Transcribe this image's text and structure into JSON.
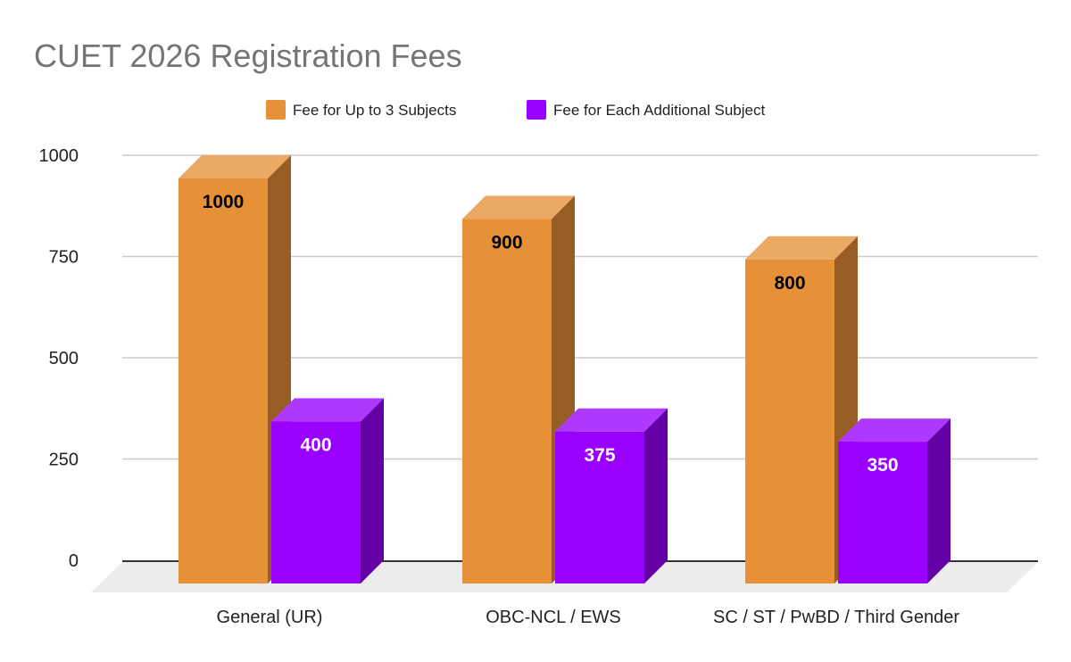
{
  "chart_data": {
    "type": "bar",
    "title": "CUET 2026 Registration Fees",
    "categories": [
      "General (UR)",
      "OBC-NCL / EWS",
      "SC / ST / PwBD / Third Gender"
    ],
    "series": [
      {
        "name": "Fee for Up to 3 Subjects",
        "values": [
          1000,
          900,
          800
        ],
        "color": "#E69138"
      },
      {
        "name": "Fee for Each Additional Subject",
        "values": [
          400,
          375,
          350
        ],
        "color": "#9900FF"
      }
    ],
    "yticks": [
      0,
      250,
      500,
      750,
      1000
    ],
    "ylim": [
      0,
      1000
    ],
    "grid": true,
    "legend": "top",
    "style": "3d",
    "data_labels": true
  }
}
